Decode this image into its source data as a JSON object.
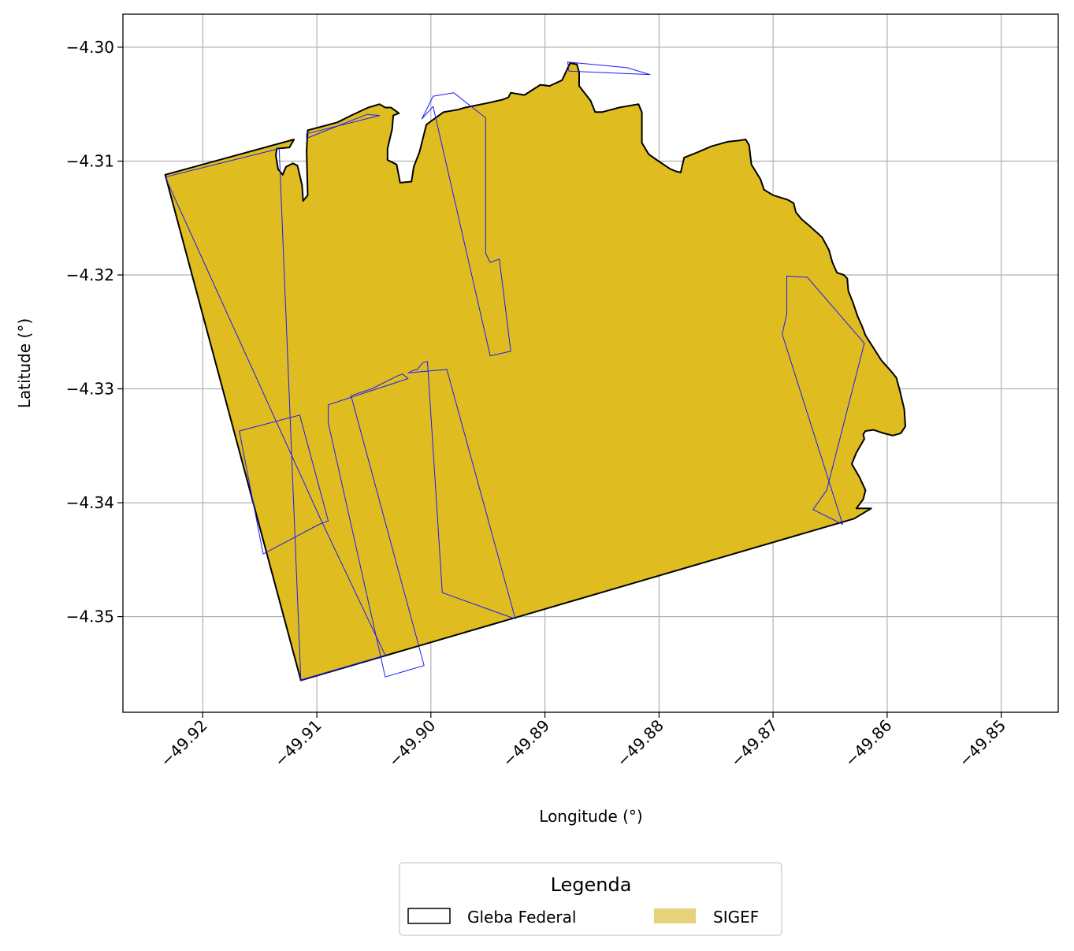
{
  "chart_data": {
    "type": "map",
    "xlabel": "Longitude (°)",
    "ylabel": "Latitude (°)",
    "xlim": [
      -49.927,
      -49.845
    ],
    "ylim": [
      -4.3584,
      -4.2971
    ],
    "grid": true,
    "x_ticks": [
      {
        "value": -49.92,
        "label": "−49.92"
      },
      {
        "value": -49.91,
        "label": "−49.91"
      },
      {
        "value": -49.9,
        "label": "−49.90"
      },
      {
        "value": -49.89,
        "label": "−49.89"
      },
      {
        "value": -49.88,
        "label": "−49.88"
      },
      {
        "value": -49.87,
        "label": "−49.87"
      },
      {
        "value": -49.86,
        "label": "−49.86"
      },
      {
        "value": -49.85,
        "label": "−49.85"
      }
    ],
    "y_ticks": [
      {
        "value": -4.3,
        "label": "−4.30"
      },
      {
        "value": -4.31,
        "label": "−4.31"
      },
      {
        "value": -4.32,
        "label": "−4.32"
      },
      {
        "value": -4.33,
        "label": "−4.33"
      },
      {
        "value": -4.34,
        "label": "−4.34"
      },
      {
        "value": -4.35,
        "label": "−4.35"
      }
    ],
    "legend": {
      "title": "Legenda",
      "placement": "bottom-center",
      "entries": [
        {
          "label": "Gleba Federal",
          "fill": "none",
          "edge": "#000000"
        },
        {
          "label": "SIGEF",
          "fill": "#e6d27a",
          "edge": "none"
        }
      ]
    },
    "layers": [
      {
        "name": "Gleba Federal",
        "fill": "#dfbc20",
        "edge": "#000000",
        "polygon": [
          [
            -49.9233,
            -4.3112
          ],
          [
            -49.912,
            -4.3081
          ],
          [
            -49.9124,
            -4.3088
          ],
          [
            -49.9135,
            -4.3089
          ],
          [
            -49.9136,
            -4.3095
          ],
          [
            -49.9134,
            -4.3107
          ],
          [
            -49.913,
            -4.3112
          ],
          [
            -49.9127,
            -4.3105
          ],
          [
            -49.9121,
            -4.3102
          ],
          [
            -49.9117,
            -4.3104
          ],
          [
            -49.9113,
            -4.3121
          ],
          [
            -49.9112,
            -4.3135
          ],
          [
            -49.9108,
            -4.313
          ],
          [
            -49.9109,
            -4.3091
          ],
          [
            -49.9108,
            -4.3073
          ],
          [
            -49.9082,
            -4.3066
          ],
          [
            -49.907,
            -4.306
          ],
          [
            -49.9055,
            -4.3053
          ],
          [
            -49.9045,
            -4.305
          ],
          [
            -49.904,
            -4.3053
          ],
          [
            -49.9035,
            -4.3053
          ],
          [
            -49.9028,
            -4.3058
          ],
          [
            -49.9033,
            -4.306
          ],
          [
            -49.9034,
            -4.3072
          ],
          [
            -49.9038,
            -4.3089
          ],
          [
            -49.9038,
            -4.3099
          ],
          [
            -49.903,
            -4.3103
          ],
          [
            -49.9027,
            -4.3119
          ],
          [
            -49.9017,
            -4.3118
          ],
          [
            -49.9015,
            -4.3105
          ],
          [
            -49.901,
            -4.3092
          ],
          [
            -49.9004,
            -4.3068
          ],
          [
            -49.8989,
            -4.3057
          ],
          [
            -49.8977,
            -4.3055
          ],
          [
            -49.897,
            -4.3053
          ],
          [
            -49.895,
            -4.3049
          ],
          [
            -49.8937,
            -4.3046
          ],
          [
            -49.8932,
            -4.3044
          ],
          [
            -49.893,
            -4.304
          ],
          [
            -49.8918,
            -4.3042
          ],
          [
            -49.8904,
            -4.3033
          ],
          [
            -49.8896,
            -4.3034
          ],
          [
            -49.8885,
            -4.3029
          ],
          [
            -49.8878,
            -4.3014
          ],
          [
            -49.8872,
            -4.3015
          ],
          [
            -49.887,
            -4.3022
          ],
          [
            -49.887,
            -4.3034
          ],
          [
            -49.886,
            -4.3047
          ],
          [
            -49.8856,
            -4.3057
          ],
          [
            -49.885,
            -4.3057
          ],
          [
            -49.8835,
            -4.3053
          ],
          [
            -49.8818,
            -4.305
          ],
          [
            -49.8815,
            -4.3057
          ],
          [
            -49.8815,
            -4.3072
          ],
          [
            -49.8815,
            -4.3084
          ],
          [
            -49.8809,
            -4.3094
          ],
          [
            -49.8802,
            -4.3099
          ],
          [
            -49.879,
            -4.3107
          ],
          [
            -49.8785,
            -4.3109
          ],
          [
            -49.8781,
            -4.311
          ],
          [
            -49.8778,
            -4.3097
          ],
          [
            -49.8768,
            -4.3093
          ],
          [
            -49.8754,
            -4.3087
          ],
          [
            -49.874,
            -4.3083
          ],
          [
            -49.873,
            -4.3082
          ],
          [
            -49.8724,
            -4.3081
          ],
          [
            -49.8721,
            -4.3086
          ],
          [
            -49.8719,
            -4.3103
          ],
          [
            -49.8711,
            -4.3116
          ],
          [
            -49.8708,
            -4.3125
          ],
          [
            -49.87,
            -4.313
          ],
          [
            -49.8687,
            -4.3134
          ],
          [
            -49.8682,
            -4.3137
          ],
          [
            -49.868,
            -4.3145
          ],
          [
            -49.8675,
            -4.3151
          ],
          [
            -49.8668,
            -4.3157
          ],
          [
            -49.8657,
            -4.3167
          ],
          [
            -49.8651,
            -4.3178
          ],
          [
            -49.8648,
            -4.3189
          ],
          [
            -49.8644,
            -4.3198
          ],
          [
            -49.8638,
            -4.32
          ],
          [
            -49.8635,
            -4.3203
          ],
          [
            -49.8634,
            -4.3214
          ],
          [
            -49.863,
            -4.3224
          ],
          [
            -49.8626,
            -4.3236
          ],
          [
            -49.8622,
            -4.3245
          ],
          [
            -49.8619,
            -4.3253
          ],
          [
            -49.8612,
            -4.3264
          ],
          [
            -49.8605,
            -4.3275
          ],
          [
            -49.8597,
            -4.3284
          ],
          [
            -49.8592,
            -4.329
          ],
          [
            -49.8589,
            -4.3301
          ],
          [
            -49.8585,
            -4.3318
          ],
          [
            -49.8584,
            -4.3333
          ],
          [
            -49.8588,
            -4.3339
          ],
          [
            -49.8595,
            -4.3341
          ],
          [
            -49.8603,
            -4.3339
          ],
          [
            -49.8612,
            -4.3336
          ],
          [
            -49.8619,
            -4.3337
          ],
          [
            -49.8621,
            -4.334
          ],
          [
            -49.862,
            -4.3344
          ],
          [
            -49.8627,
            -4.3356
          ],
          [
            -49.8631,
            -4.3366
          ],
          [
            -49.8624,
            -4.3378
          ],
          [
            -49.8619,
            -4.3389
          ],
          [
            -49.8621,
            -4.3397
          ],
          [
            -49.8627,
            -4.3405
          ],
          [
            -49.8614,
            -4.3405
          ],
          [
            -49.8629,
            -4.3414
          ],
          [
            -49.9114,
            -4.3556
          ],
          [
            -49.9233,
            -4.3112
          ]
        ]
      },
      {
        "name": "SIGEF",
        "fill": "#dfbc20",
        "edge": "#1a1aff",
        "polygons": [
          [
            [
              -49.9233,
              -4.3114
            ],
            [
              -49.9133,
              -4.3089
            ],
            [
              -49.9114,
              -4.3556
            ],
            [
              -49.904,
              -4.3534
            ],
            [
              -49.9095,
              -4.3418
            ],
            [
              -49.9233,
              -4.3114
            ]
          ],
          [
            [
              -49.9168,
              -4.3337
            ],
            [
              -49.9115,
              -4.3323
            ],
            [
              -49.909,
              -4.3416
            ],
            [
              -49.9098,
              -4.3419
            ],
            [
              -49.9147,
              -4.3445
            ],
            [
              -49.9168,
              -4.3337
            ]
          ],
          [
            [
              -49.909,
              -4.3314
            ],
            [
              -49.909,
              -4.333
            ],
            [
              -49.904,
              -4.3553
            ],
            [
              -49.9006,
              -4.3543
            ],
            [
              -49.907,
              -4.3306
            ],
            [
              -49.9052,
              -4.33
            ],
            [
              -49.903,
              -4.3289
            ],
            [
              -49.9025,
              -4.3287
            ],
            [
              -49.902,
              -4.3291
            ],
            [
              -49.909,
              -4.3314
            ]
          ],
          [
            [
              -49.902,
              -4.3286
            ],
            [
              -49.9016,
              -4.3284
            ],
            [
              -49.9012,
              -4.3283
            ],
            [
              -49.9007,
              -4.3277
            ],
            [
              -49.9003,
              -4.3276
            ],
            [
              -49.899,
              -4.3479
            ],
            [
              -49.8926,
              -4.3502
            ],
            [
              -49.8986,
              -4.3283
            ],
            [
              -49.902,
              -4.3286
            ]
          ],
          [
            [
              -49.9008,
              -4.3063
            ],
            [
              -49.8998,
              -4.3043
            ],
            [
              -49.898,
              -4.304
            ],
            [
              -49.8952,
              -4.3062
            ],
            [
              -49.8952,
              -4.3181
            ],
            [
              -49.8948,
              -4.3189
            ],
            [
              -49.894,
              -4.3186
            ],
            [
              -49.893,
              -4.3267
            ],
            [
              -49.8948,
              -4.3271
            ],
            [
              -49.8998,
              -4.3052
            ],
            [
              -49.9008,
              -4.3063
            ]
          ],
          [
            [
              -49.8879,
              -4.3021
            ],
            [
              -49.888,
              -4.3013
            ],
            [
              -49.8828,
              -4.3018
            ],
            [
              -49.8808,
              -4.3024
            ],
            [
              -49.8879,
              -4.3021
            ]
          ],
          [
            [
              -49.8688,
              -4.3201
            ],
            [
              -49.8688,
              -4.3234
            ],
            [
              -49.8692,
              -4.3252
            ],
            [
              -49.8639,
              -4.3419
            ],
            [
              -49.8665,
              -4.3406
            ],
            [
              -49.8653,
              -4.3389
            ],
            [
              -49.862,
              -4.326
            ],
            [
              -49.867,
              -4.3202
            ],
            [
              -49.8688,
              -4.3201
            ]
          ],
          [
            [
              -49.9109,
              -4.308
            ],
            [
              -49.9056,
              -4.3059
            ],
            [
              -49.9045,
              -4.306
            ],
            [
              -49.9109,
              -4.3076
            ],
            [
              -49.9109,
              -4.308
            ]
          ]
        ]
      }
    ]
  }
}
